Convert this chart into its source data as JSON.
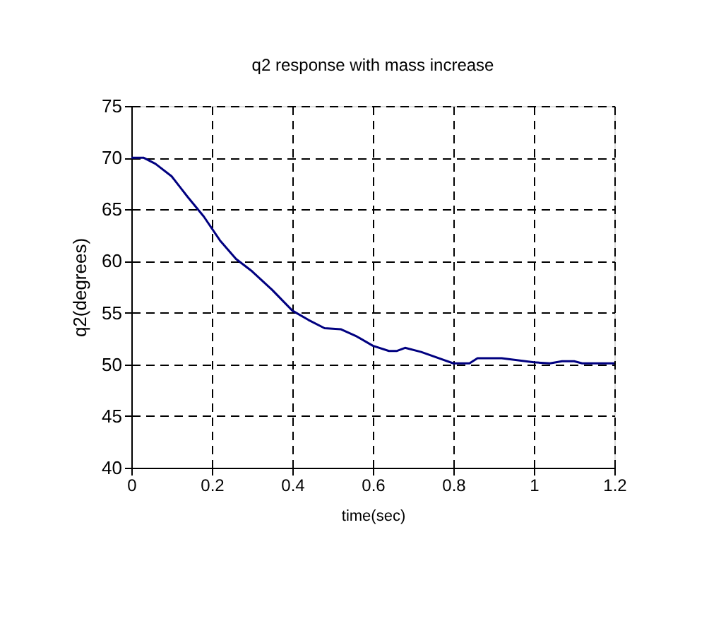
{
  "chart_data": {
    "type": "line",
    "title": "q2 response with mass increase",
    "xlabel": "time(sec)",
    "ylabel": "q2(degrees)",
    "x": [
      0,
      0.03,
      0.06,
      0.1,
      0.14,
      0.18,
      0.22,
      0.26,
      0.3,
      0.35,
      0.4,
      0.44,
      0.48,
      0.52,
      0.56,
      0.6,
      0.64,
      0.66,
      0.68,
      0.72,
      0.8,
      0.84,
      0.86,
      0.92,
      1.0,
      1.04,
      1.07,
      1.1,
      1.12,
      1.2
    ],
    "series": [
      {
        "color": "#000080",
        "values": [
          70,
          70,
          69.4,
          68.2,
          66.2,
          64.3,
          62,
          60.2,
          59,
          57.2,
          55.2,
          54.3,
          53.5,
          53.4,
          52.7,
          51.8,
          51.3,
          51.3,
          51.6,
          51.2,
          50.1,
          50.1,
          50.6,
          50.6,
          50.2,
          50.1,
          50.3,
          50.3,
          50.1,
          50.1
        ]
      }
    ],
    "xlim": [
      0,
      1.2
    ],
    "xticks": [
      0,
      0.2,
      0.4,
      0.6,
      0.8,
      1,
      1.2
    ],
    "ylim": [
      40,
      75
    ],
    "yticks": [
      40,
      45,
      50,
      55,
      60,
      65,
      70,
      75
    ],
    "grid": true,
    "line_style": "solid",
    "marker": "none"
  }
}
